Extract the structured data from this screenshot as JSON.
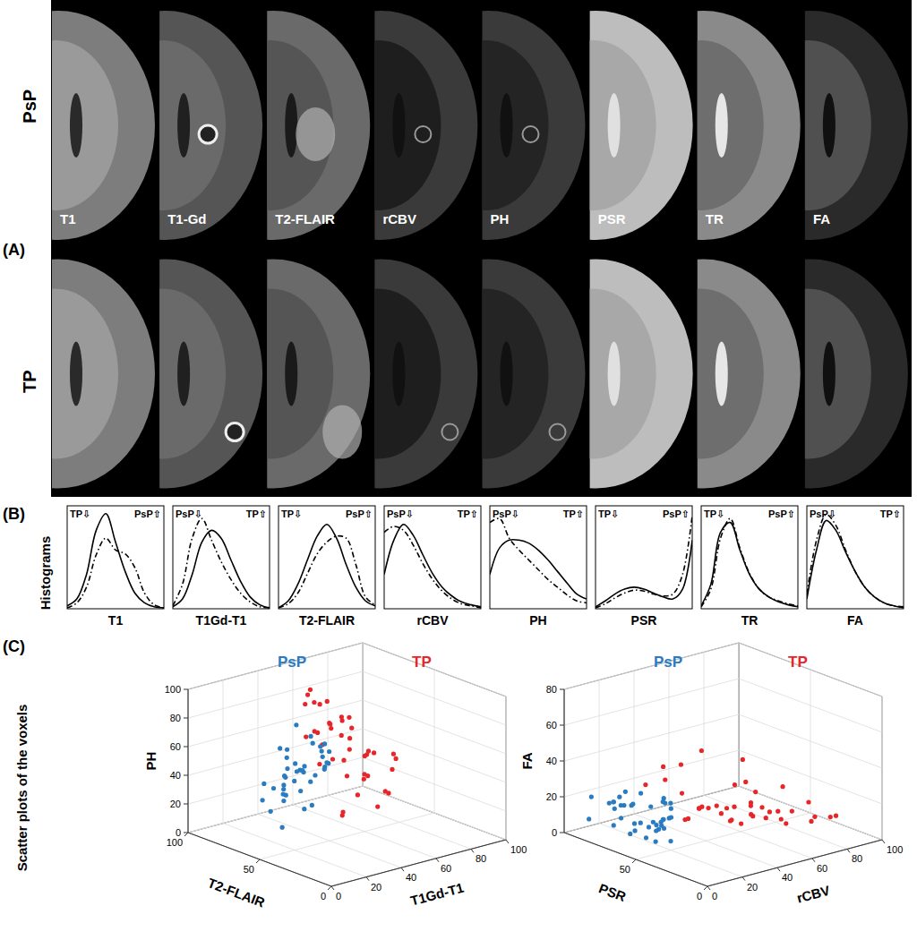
{
  "figure": {
    "panel_labels": [
      "(A)",
      "(B)",
      "(C)"
    ],
    "rows": [
      "PsP",
      "TP"
    ],
    "columns": [
      "T1",
      "T1-Gd",
      "T2-FLAIR",
      "rCBV",
      "PH",
      "PSR",
      "TR",
      "FA"
    ],
    "side_labels": [
      "Histograms",
      "Scatter plots of the voxels"
    ]
  },
  "chart_data": [
    {
      "type": "line",
      "x_label": "T1",
      "annotations": [
        "TP⇩",
        "PsP⇧"
      ],
      "tick_labels": false,
      "xlim": [
        0,
        100
      ],
      "ylim": [
        0,
        1.05
      ],
      "x": [
        0,
        10,
        20,
        30,
        40,
        50,
        60,
        70,
        80,
        90,
        100
      ],
      "series": [
        {
          "color": "#000000",
          "line_style": "solid",
          "values": [
            0.03,
            0.1,
            0.35,
            0.8,
            0.97,
            0.68,
            0.38,
            0.16,
            0.06,
            0.02,
            0.01
          ]
        },
        {
          "color": "#000000",
          "line_style": "dashdot",
          "values": [
            0.01,
            0.06,
            0.22,
            0.55,
            0.72,
            0.6,
            0.56,
            0.42,
            0.16,
            0.04,
            0.01
          ]
        }
      ]
    },
    {
      "type": "line",
      "x_label": "T1Gd-T1",
      "annotations": [
        "PsP⇩",
        "TP⇧"
      ],
      "tick_labels": false,
      "xlim": [
        0,
        100
      ],
      "ylim": [
        0,
        1.05
      ],
      "x": [
        0,
        10,
        20,
        30,
        40,
        50,
        60,
        70,
        80,
        90,
        100
      ],
      "series": [
        {
          "color": "#000000",
          "line_style": "solid",
          "values": [
            0.02,
            0.1,
            0.35,
            0.68,
            0.8,
            0.72,
            0.5,
            0.28,
            0.12,
            0.04,
            0.01
          ]
        },
        {
          "color": "#000000",
          "line_style": "dashdot",
          "values": [
            0.03,
            0.25,
            0.72,
            0.92,
            0.7,
            0.48,
            0.3,
            0.16,
            0.07,
            0.02,
            0.01
          ]
        }
      ]
    },
    {
      "type": "line",
      "x_label": "T2-FLAIR",
      "annotations": [
        "TP⇩",
        "PsP⇧"
      ],
      "tick_labels": false,
      "xlim": [
        0,
        100
      ],
      "ylim": [
        0,
        1.05
      ],
      "x": [
        0,
        10,
        20,
        30,
        40,
        50,
        60,
        70,
        80,
        90,
        100
      ],
      "series": [
        {
          "color": "#000000",
          "line_style": "solid",
          "values": [
            0.01,
            0.08,
            0.25,
            0.5,
            0.74,
            0.86,
            0.72,
            0.45,
            0.22,
            0.08,
            0.03
          ]
        },
        {
          "color": "#000000",
          "line_style": "dashdot",
          "values": [
            0.01,
            0.05,
            0.16,
            0.36,
            0.56,
            0.68,
            0.74,
            0.72,
            0.45,
            0.12,
            0.04
          ]
        }
      ]
    },
    {
      "type": "line",
      "x_label": "rCBV",
      "annotations": [
        "PsP⇩",
        "TP⇧"
      ],
      "tick_labels": false,
      "xlim": [
        0,
        100
      ],
      "ylim": [
        0,
        1.05
      ],
      "x": [
        0,
        10,
        20,
        30,
        40,
        50,
        60,
        70,
        80,
        90,
        100
      ],
      "series": [
        {
          "color": "#000000",
          "line_style": "solid",
          "values": [
            0.35,
            0.7,
            0.86,
            0.75,
            0.55,
            0.36,
            0.22,
            0.13,
            0.07,
            0.04,
            0.02
          ]
        },
        {
          "color": "#000000",
          "line_style": "dashdot",
          "values": [
            0.78,
            0.84,
            0.8,
            0.65,
            0.46,
            0.3,
            0.18,
            0.1,
            0.05,
            0.03,
            0.01
          ]
        }
      ]
    },
    {
      "type": "line",
      "x_label": "PH",
      "annotations": [
        "PsP⇩",
        "TP⇧"
      ],
      "tick_labels": false,
      "xlim": [
        0,
        100
      ],
      "ylim": [
        0,
        1.05
      ],
      "x": [
        0,
        10,
        20,
        30,
        40,
        50,
        60,
        70,
        80,
        90,
        100
      ],
      "series": [
        {
          "color": "#000000",
          "line_style": "solid",
          "values": [
            0.35,
            0.62,
            0.7,
            0.7,
            0.67,
            0.6,
            0.5,
            0.38,
            0.26,
            0.15,
            0.1
          ]
        },
        {
          "color": "#000000",
          "line_style": "dashdot",
          "values": [
            0.88,
            0.92,
            0.72,
            0.6,
            0.5,
            0.4,
            0.3,
            0.22,
            0.14,
            0.08,
            0.06
          ]
        }
      ]
    },
    {
      "type": "line",
      "x_label": "PSR",
      "annotations": [
        "TP⇩",
        "PsP⇧"
      ],
      "tick_labels": false,
      "xlim": [
        0,
        100
      ],
      "ylim": [
        0,
        1.05
      ],
      "x": [
        0,
        10,
        20,
        30,
        40,
        50,
        60,
        70,
        80,
        90,
        100
      ],
      "series": [
        {
          "color": "#000000",
          "line_style": "solid",
          "values": [
            0.02,
            0.08,
            0.15,
            0.2,
            0.22,
            0.2,
            0.16,
            0.12,
            0.1,
            0.2,
            0.7
          ]
        },
        {
          "color": "#000000",
          "line_style": "dashdot",
          "values": [
            0.01,
            0.05,
            0.11,
            0.16,
            0.19,
            0.18,
            0.15,
            0.13,
            0.15,
            0.35,
            0.95
          ]
        }
      ]
    },
    {
      "type": "line",
      "x_label": "TR",
      "annotations": [
        "TP⇩",
        "PsP⇧"
      ],
      "tick_labels": false,
      "xlim": [
        0,
        100
      ],
      "ylim": [
        0,
        1.05
      ],
      "x": [
        0,
        10,
        20,
        30,
        40,
        50,
        60,
        70,
        80,
        90,
        100
      ],
      "series": [
        {
          "color": "#000000",
          "line_style": "solid",
          "values": [
            0.03,
            0.25,
            0.78,
            0.88,
            0.6,
            0.35,
            0.2,
            0.12,
            0.07,
            0.04,
            0.02
          ]
        },
        {
          "color": "#000000",
          "line_style": "dashdot",
          "values": [
            0.02,
            0.2,
            0.72,
            0.92,
            0.62,
            0.36,
            0.2,
            0.12,
            0.08,
            0.05,
            0.03
          ]
        }
      ]
    },
    {
      "type": "line",
      "x_label": "FA",
      "annotations": [
        "PsP⇩",
        "TP⇧"
      ],
      "tick_labels": false,
      "xlim": [
        0,
        100
      ],
      "ylim": [
        0,
        1.05
      ],
      "x": [
        0,
        10,
        20,
        30,
        40,
        50,
        60,
        70,
        80,
        90,
        100
      ],
      "series": [
        {
          "color": "#000000",
          "line_style": "solid",
          "values": [
            0.1,
            0.6,
            0.9,
            0.8,
            0.58,
            0.38,
            0.22,
            0.12,
            0.06,
            0.03,
            0.01
          ]
        },
        {
          "color": "#000000",
          "line_style": "dashdot",
          "values": [
            0.15,
            0.7,
            0.96,
            0.85,
            0.6,
            0.38,
            0.22,
            0.12,
            0.06,
            0.03,
            0.02
          ]
        }
      ]
    },
    {
      "type": "scatter",
      "x_label": "T1Gd-T1",
      "y_label": "T2-FLAIR",
      "z_label": "PH",
      "grid": true,
      "xlim": [
        0,
        100
      ],
      "ylim": [
        0,
        100
      ],
      "zlim": [
        0,
        100
      ],
      "xticks": [
        0,
        20,
        40,
        60,
        80,
        100
      ],
      "yticks": [
        0,
        50,
        100
      ],
      "zticks": [
        0,
        20,
        40,
        60,
        80,
        100
      ],
      "series": [
        {
          "name": "PsP",
          "color": "#2b7bc0",
          "marker": "dot",
          "x": [
            15,
            20,
            22,
            25,
            28,
            30,
            32,
            35,
            18,
            24,
            27,
            33,
            38,
            40,
            26,
            29,
            31,
            21,
            36,
            42,
            23,
            34,
            19,
            28,
            37,
            30,
            25,
            45,
            32,
            27,
            17,
            39,
            24,
            35,
            29,
            41,
            22,
            33,
            26,
            31
          ],
          "y": [
            50,
            55,
            60,
            45,
            65,
            58,
            52,
            62,
            70,
            48,
            57,
            66,
            54,
            60,
            72,
            40,
            63,
            68,
            50,
            56,
            75,
            46,
            59,
            53,
            67,
            61,
            44,
            58,
            71,
            64,
            55,
            49,
            62,
            57,
            69,
            52,
            60,
            47,
            65,
            58
          ],
          "z": [
            40,
            55,
            30,
            48,
            62,
            35,
            70,
            45,
            28,
            58,
            50,
            38,
            65,
            42,
            33,
            75,
            52,
            20,
            60,
            47,
            36,
            55,
            68,
            25,
            44,
            80,
            32,
            50,
            39,
            57,
            15,
            63,
            46,
            72,
            29,
            53,
            41,
            66,
            35,
            49
          ]
        },
        {
          "name": "TP",
          "color": "#e8262a",
          "marker": "dot",
          "x": [
            40,
            45,
            50,
            55,
            60,
            65,
            48,
            52,
            58,
            62,
            70,
            35,
            42,
            56,
            66,
            75,
            53,
            47,
            61,
            44,
            68,
            57,
            50,
            38,
            64,
            72,
            46,
            59,
            54,
            80,
            43,
            63,
            49,
            67,
            55,
            51,
            60,
            78,
            41,
            58
          ],
          "y": [
            40,
            55,
            60,
            70,
            50,
            65,
            75,
            45,
            58,
            68,
            62,
            35,
            52,
            80,
            55,
            48,
            66,
            72,
            42,
            60,
            70,
            57,
            50,
            64,
            38,
            58,
            68,
            46,
            74,
            55,
            62,
            52,
            78,
            44,
            60,
            54,
            66,
            50,
            58,
            48
          ],
          "z": [
            60,
            75,
            50,
            85,
            40,
            65,
            90,
            30,
            55,
            70,
            45,
            25,
            80,
            60,
            35,
            50,
            72,
            95,
            20,
            62,
            55,
            78,
            42,
            68,
            30,
            48,
            88,
            58,
            40,
            35,
            70,
            52,
            82,
            28,
            65,
            15,
            74,
            45,
            92,
            38
          ]
        }
      ]
    },
    {
      "type": "scatter",
      "x_label": "rCBV",
      "y_label": "PSR",
      "z_label": "FA",
      "grid": true,
      "xlim": [
        0,
        100
      ],
      "ylim": [
        0,
        100
      ],
      "zlim": [
        0,
        80
      ],
      "xticks": [
        0,
        20,
        40,
        60,
        80,
        100
      ],
      "yticks": [
        0,
        50
      ],
      "zticks": [
        0,
        20,
        40,
        60,
        80
      ],
      "series": [
        {
          "name": "PsP",
          "color": "#2b7bc0",
          "marker": "dot",
          "x": [
            5,
            8,
            10,
            12,
            15,
            18,
            20,
            22,
            25,
            6,
            9,
            14,
            17,
            21,
            28,
            30,
            11,
            13,
            16,
            19,
            24,
            7,
            27,
            32,
            10,
            15,
            20,
            35,
            12,
            18,
            23,
            26,
            9,
            14,
            29,
            38,
            16,
            21,
            11,
            25
          ],
          "y": [
            60,
            70,
            55,
            80,
            65,
            75,
            50,
            85,
            60,
            90,
            45,
            68,
            78,
            58,
            72,
            62,
            82,
            52,
            66,
            88,
            56,
            74,
            64,
            70,
            48,
            84,
            60,
            68,
            76,
            54,
            80,
            62,
            92,
            58,
            66,
            72,
            50,
            86,
            64,
            70
          ],
          "z": [
            10,
            15,
            8,
            20,
            12,
            18,
            5,
            14,
            22,
            9,
            16,
            11,
            25,
            13,
            7,
            17,
            19,
            6,
            28,
            12,
            15,
            10,
            21,
            8,
            14,
            18,
            11,
            9,
            24,
            13,
            16,
            7,
            20,
            12,
            10,
            15,
            30,
            14,
            9,
            17
          ]
        },
        {
          "name": "TP",
          "color": "#e8262a",
          "marker": "dot",
          "x": [
            20,
            30,
            40,
            50,
            60,
            70,
            80,
            25,
            35,
            45,
            55,
            65,
            75,
            90,
            28,
            38,
            48,
            58,
            68,
            85,
            33,
            43,
            53,
            63,
            73,
            22,
            42,
            62,
            82,
            95,
            36,
            46,
            56,
            66,
            52,
            44,
            57,
            71,
            39,
            49
          ],
          "y": [
            40,
            50,
            30,
            45,
            35,
            55,
            25,
            60,
            42,
            38,
            48,
            30,
            40,
            20,
            65,
            52,
            35,
            44,
            28,
            33,
            58,
            46,
            40,
            36,
            30,
            70,
            55,
            42,
            25,
            30,
            48,
            62,
            38,
            50,
            20,
            44,
            56,
            34,
            66,
            28
          ],
          "z": [
            20,
            15,
            25,
            10,
            18,
            12,
            8,
            35,
            22,
            14,
            28,
            16,
            6,
            10,
            40,
            18,
            12,
            30,
            9,
            15,
            26,
            20,
            45,
            11,
            14,
            30,
            17,
            24,
            10,
            5,
            52,
            13,
            19,
            8,
            22,
            16,
            12,
            27,
            38,
            18
          ]
        }
      ]
    }
  ]
}
